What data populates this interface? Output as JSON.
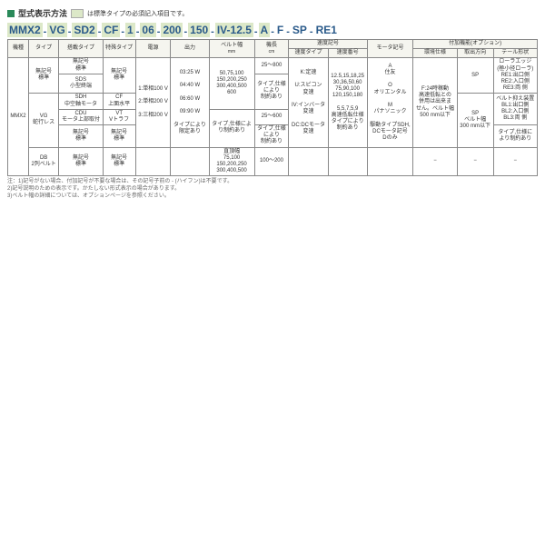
{
  "title": "型式表示方法",
  "legend": "は標準タイプの必須記入項目です。",
  "model": [
    "MMX2",
    "VG",
    "SD2",
    "CF",
    "1",
    "06",
    "200",
    "150",
    "IV-12.5",
    "A",
    "F",
    "SP",
    "RE1"
  ],
  "headers": {
    "h1": "機種",
    "h2": "タイプ",
    "h3": "搭載タイプ",
    "h4": "特殊タイプ",
    "h5": "電源",
    "h6": "出力",
    "h7": "ベルト幅",
    "h7u": "mm",
    "h8": "機長",
    "h8u": "cm",
    "h9": "速度記号",
    "h9a": "速度タイプ",
    "h9b": "速度番号",
    "h10": "モータ記号",
    "h11": "付加機能(オプション)",
    "h11a": "環境仕様",
    "h11b": "取出方向",
    "h11c": "テール形状"
  },
  "c1": {
    "a": "MMX2"
  },
  "c2": {
    "a": "無記号\n標準",
    "b": "VG\n蛇行レス",
    "c": "DB\n2列ベルト"
  },
  "c3": {
    "a": "無記号\n標準",
    "b": "SDS\n小型終端",
    "c": "SDH\n中空軸モータ",
    "d": "CDU\nモータ上部取付",
    "e": "無記号\n標準",
    "f": "無記号\n標準"
  },
  "c4": {
    "a": "無記号\n標準",
    "b": "CF\n上面水平",
    "c": "VT\nVトラフ",
    "d": "無記号\n標準",
    "e": "無記号\n標準"
  },
  "c5": {
    "a": "1:単相100 V",
    "b": "2:単相200 V",
    "c": "3:三相200 V"
  },
  "c6": {
    "a": "03:25 W",
    "b": "04:40 W",
    "c": "06:60 W",
    "d": "09:90 W",
    "e": "タイプにより\n限定あり"
  },
  "c7": {
    "a": "50,75,100\n150,200,250\n300,400,500\n600",
    "b": "タイプ,仕様によ\nり制約あり",
    "c": "直頂幅\n75,100\n150,200,250\n300,400,500"
  },
  "c8": {
    "a": "25〜800",
    "b": "タイプ,仕様\nにより\n制約あり",
    "c": "25〜600",
    "d": "タイプ,仕様\nにより\n制約あり",
    "e": "100〜200"
  },
  "c9": {
    "a": "K:定速",
    "b": "U:スピコン\n変速",
    "c": "IV:インバータ\n変速",
    "d": "DC:DCモータ\n変速"
  },
  "c10": {
    "a": "12.5,15,18,25\n30,36,50,60\n75,90,100\n120,150,180",
    "b": "5,5,7,5,9\n高速低転仕様\nタイプにより\n制約あり"
  },
  "c11": {
    "a": "A\n住友",
    "b": "O\nオリエンタル",
    "c": "M\nパナソニック",
    "d": "駆動タイプSDH,\nDCモータ記号\nDのみ"
  },
  "c12": {
    "a": "F:24時稼動\n高速低転との\n併用は出来ま\nせん。ベルト幅\n500 mm以下",
    "b": "−"
  },
  "c13": {
    "a": "SP",
    "b": "SP\nベルト幅\n300 mm以下",
    "c": "−"
  },
  "c14": {
    "a": "ローラエッジ\n(極小径ローラ)\nRE1:出口側\nRE2:入口側\nRE3:両 側",
    "b": "ベルト抑え装置\nBL1:出口側\nBL2:入口側\nBL3:両 側",
    "c": "タイプ,仕様に\nより制約あり"
  },
  "notes": {
    "n1": "注：1)記号がない場合、付加記号が不要な場合は、その記号子前の - (ハイフン)は不要です。",
    "n2": "2)記号説明のための表示です。かたしない形式表示の場合があります。",
    "n3": "3)ベルト幅の詳細については、オプションページを参照ください。"
  }
}
